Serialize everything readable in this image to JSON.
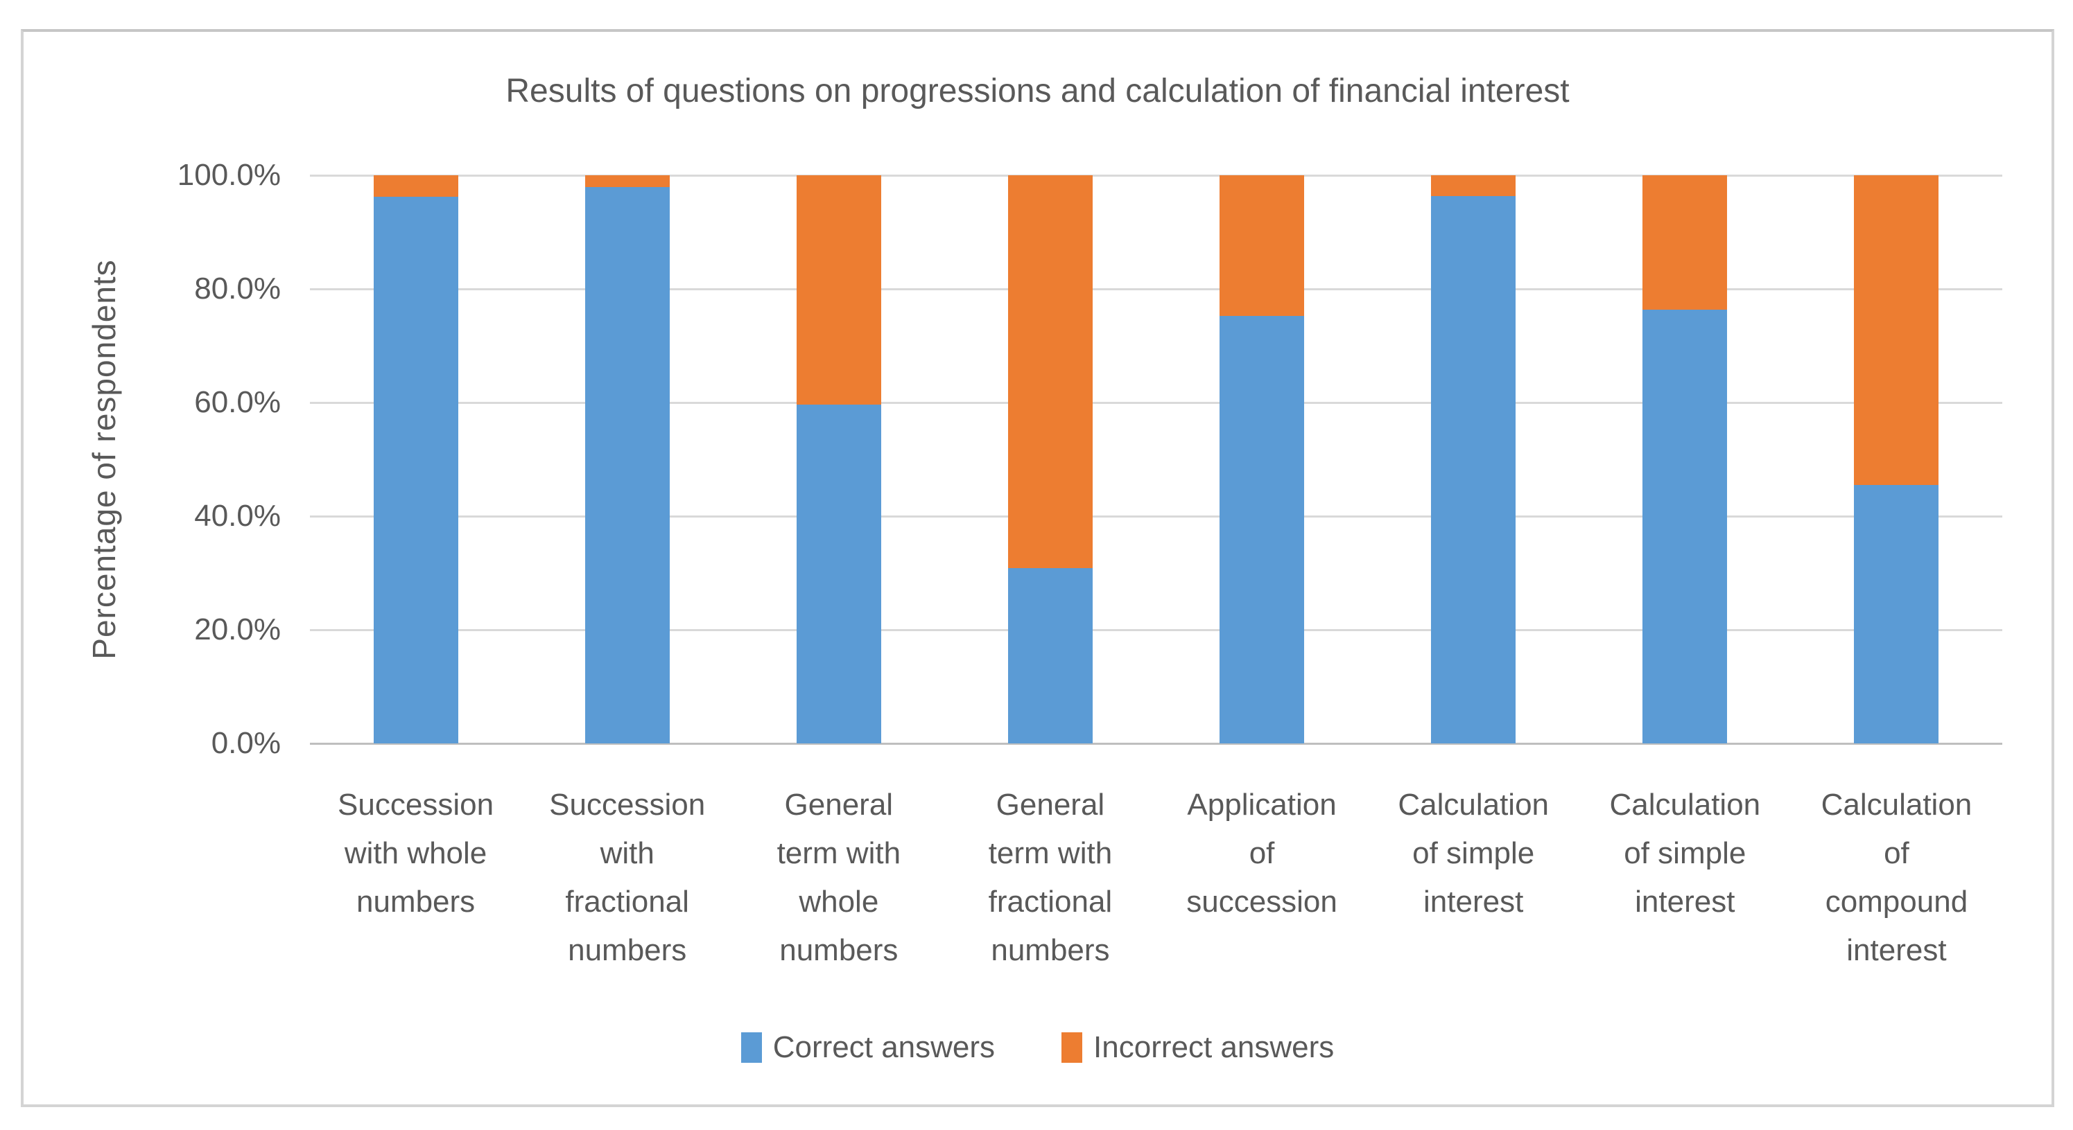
{
  "chart_data": {
    "type": "bar",
    "stacked": true,
    "stacked_to_100_percent": true,
    "title": "Results of questions on progressions and calculation of financial interest",
    "xlabel": "",
    "ylabel": "Percentage of  respondents",
    "ylim": [
      0,
      100
    ],
    "ytick_labels": [
      "100.0%",
      "80.0%",
      "60.0%",
      "40.0%",
      "20.0%",
      "0.0%"
    ],
    "grid": "horizontal",
    "legend_position": "bottom",
    "categories": [
      "Succession with whole numbers",
      "Succession with fractional numbers",
      "General term with whole numbers",
      "General term with fractional numbers",
      "Application of succession",
      "Calculation of simple interest",
      "Calculation of simple interest",
      "Calculation of compound interest"
    ],
    "category_label_lines": [
      [
        "Succession",
        "with whole",
        "numbers"
      ],
      [
        "Succession",
        "with",
        "fractional",
        "numbers"
      ],
      [
        "General",
        "term with",
        "whole",
        "numbers"
      ],
      [
        "General",
        "term with",
        "fractional",
        "numbers"
      ],
      [
        "Application",
        "of",
        "succession"
      ],
      [
        "Calculation",
        "of simple",
        "interest"
      ],
      [
        "Calculation",
        "of simple",
        "interest"
      ],
      [
        "Calculation",
        "of",
        "compound",
        "interest"
      ]
    ],
    "series": [
      {
        "name": "Correct answers",
        "color": "#5B9BD5",
        "values": [
          96.2,
          97.9,
          59.6,
          30.8,
          75.3,
          96.4,
          76.4,
          45.5
        ]
      },
      {
        "name": "Incorrect answers",
        "color": "#ED7D31",
        "values": [
          3.8,
          2.1,
          40.4,
          69.2,
          24.7,
          3.6,
          23.6,
          54.5
        ]
      }
    ]
  },
  "colors": {
    "text": "#595959",
    "gridline": "#D9D9D9",
    "axis_line": "#BFBFBF",
    "frame_border": "#D4D4D4",
    "background": "#FFFFFF",
    "correct_blue": "#5B9BD5",
    "incorrect_orange": "#ED7D31"
  }
}
